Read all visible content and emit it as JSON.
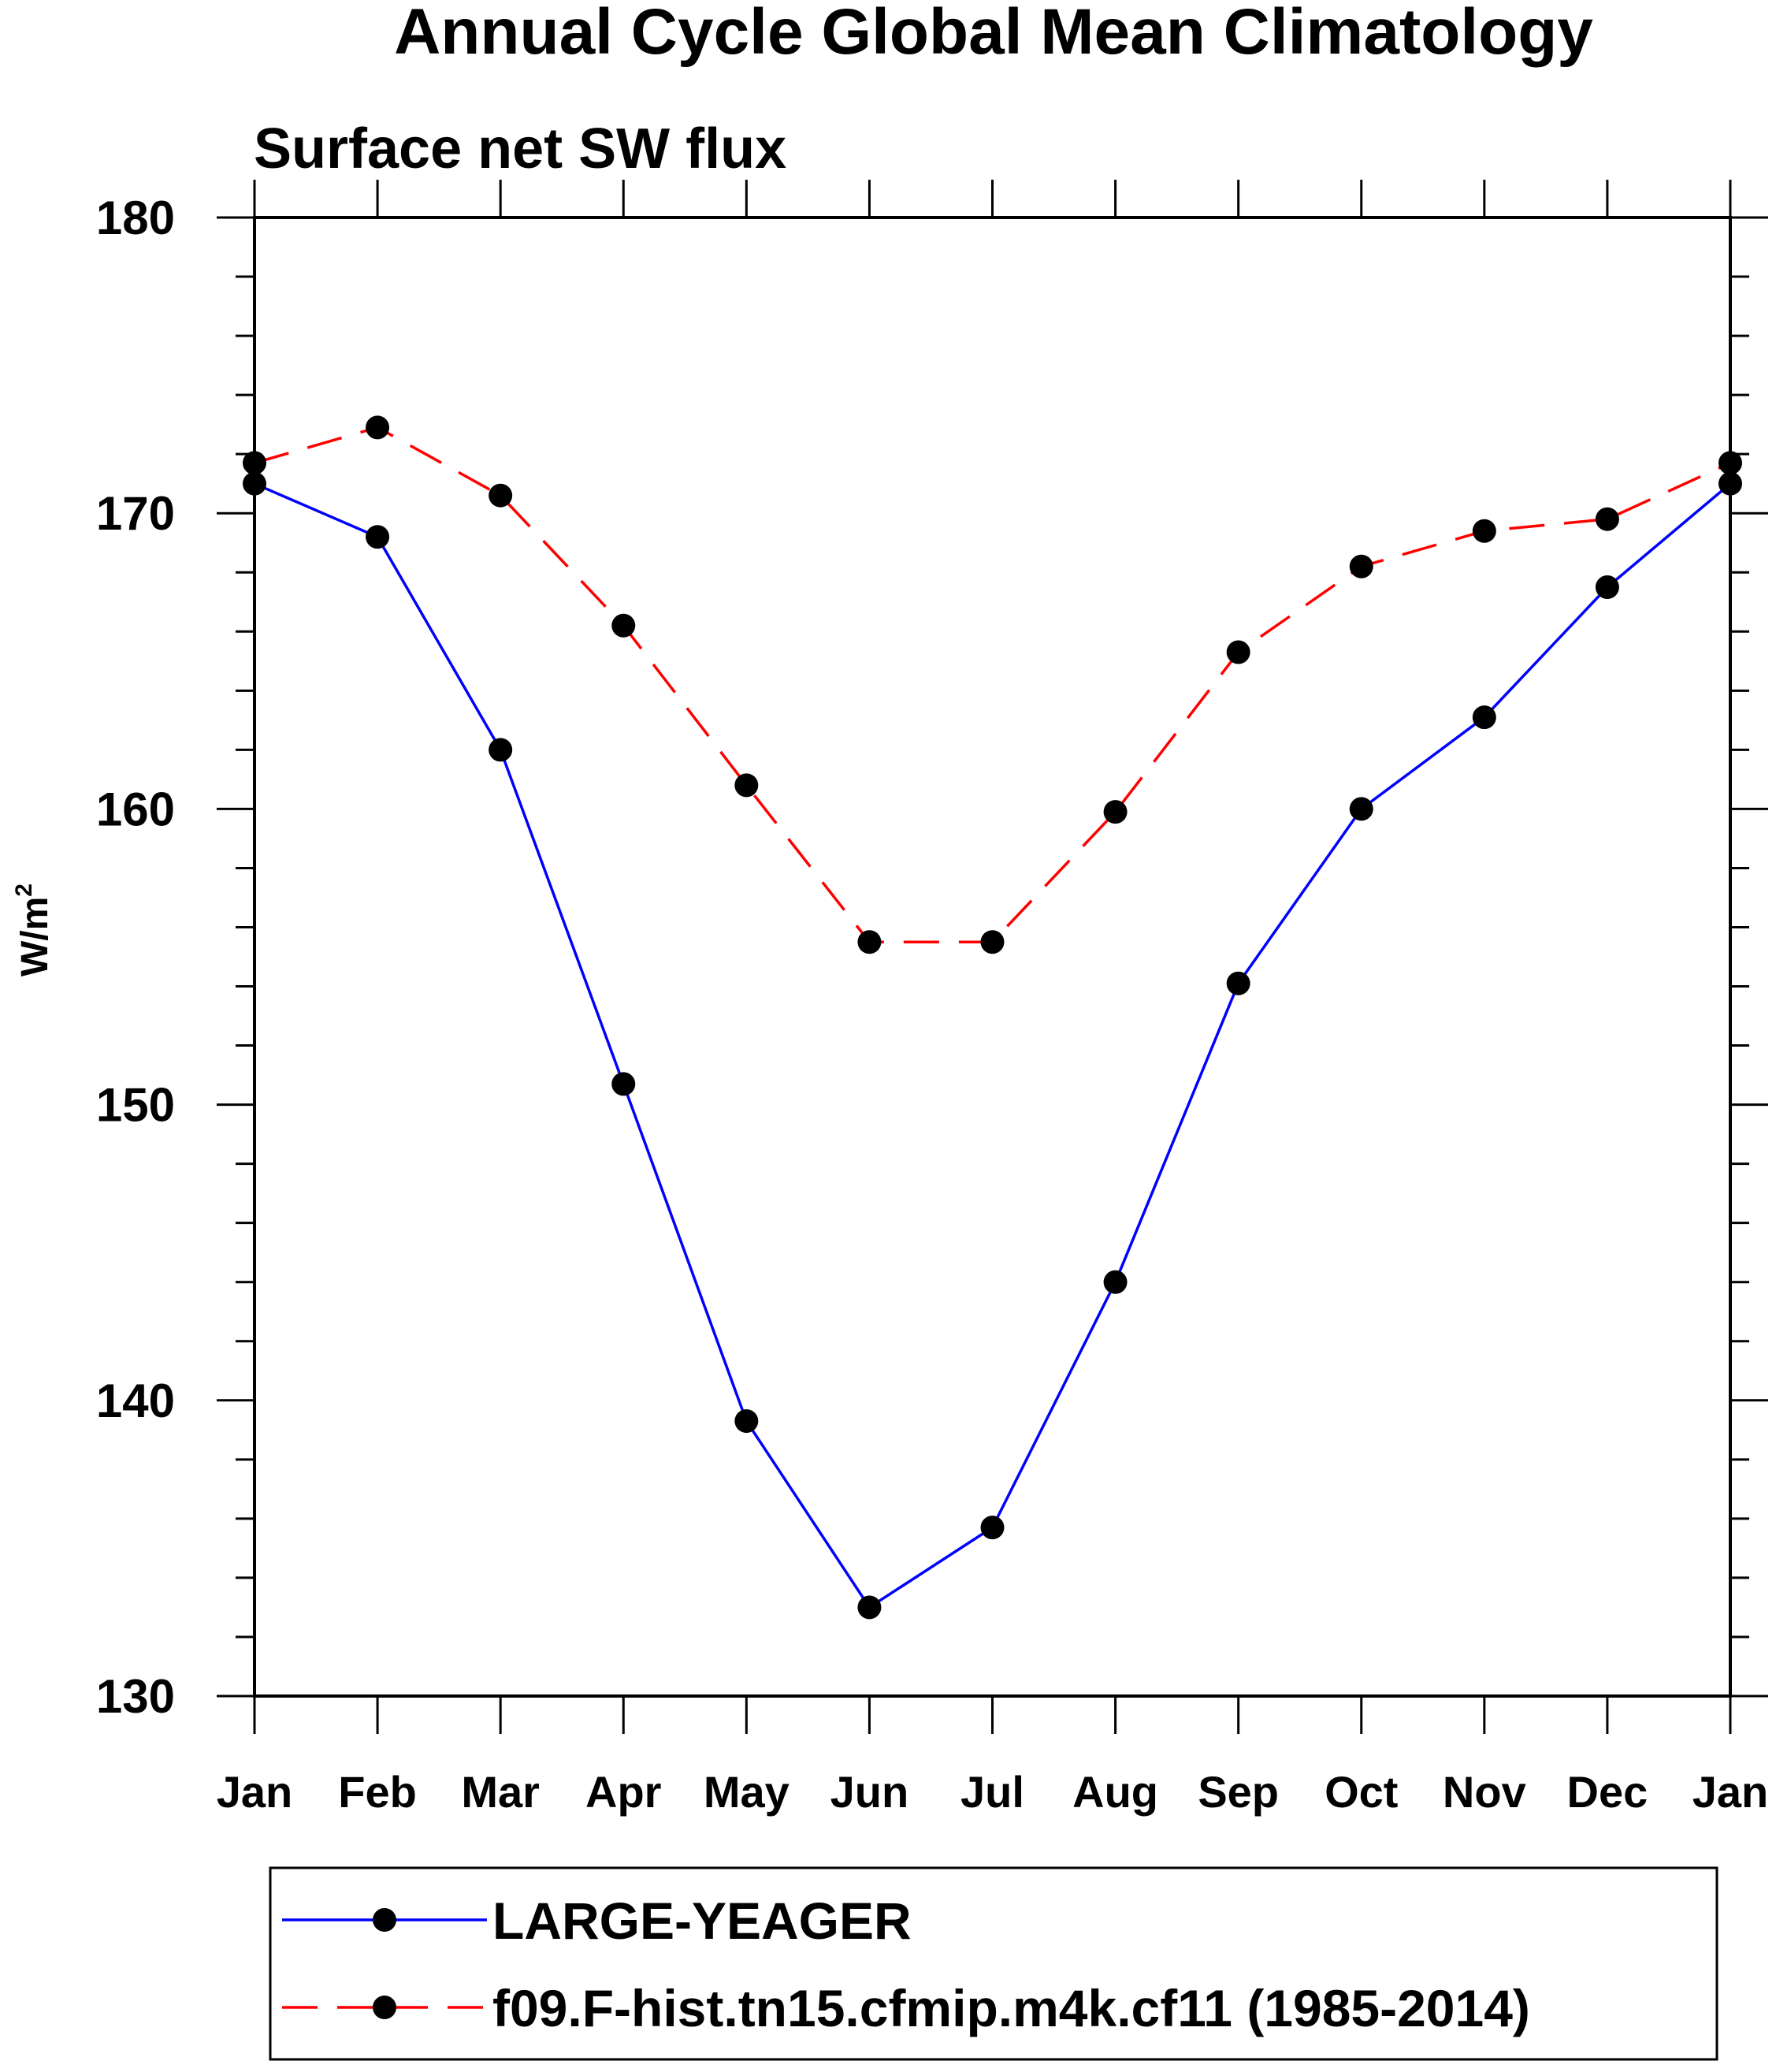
{
  "chart_data": {
    "type": "line",
    "title": "Annual Cycle Global Mean Climatology",
    "subtitle": "Surface net SW flux",
    "xlabel": "",
    "ylabel": {
      "base": "W/m",
      "superscript": "2"
    },
    "categories": [
      "Jan",
      "Feb",
      "Mar",
      "Apr",
      "May",
      "Jun",
      "Jul",
      "Aug",
      "Sep",
      "Oct",
      "Nov",
      "Dec",
      "Jan"
    ],
    "ylim": [
      130,
      180
    ],
    "yticks": [
      130,
      140,
      150,
      160,
      170,
      180
    ],
    "grid": false,
    "legend_position": "bottom",
    "series": [
      {
        "name": "LARGE-YEAGER",
        "color": "#0000ff",
        "line_style": "solid",
        "marker": "filled-circle",
        "marker_color": "#000000",
        "values": [
          171.0,
          169.2,
          162.0,
          150.7,
          139.3,
          133.0,
          135.7,
          144.0,
          154.1,
          160.0,
          163.1,
          167.5,
          171.0
        ]
      },
      {
        "name": "f09.F-hist.tn15.cfmip.m4k.cf11 (1985-2014)",
        "color": "#ff0000",
        "line_style": "dashed",
        "marker": "filled-circle",
        "marker_color": "#000000",
        "values": [
          171.7,
          172.9,
          170.6,
          166.2,
          160.8,
          155.5,
          155.5,
          159.9,
          165.3,
          168.2,
          169.4,
          169.8,
          171.7
        ]
      }
    ]
  }
}
